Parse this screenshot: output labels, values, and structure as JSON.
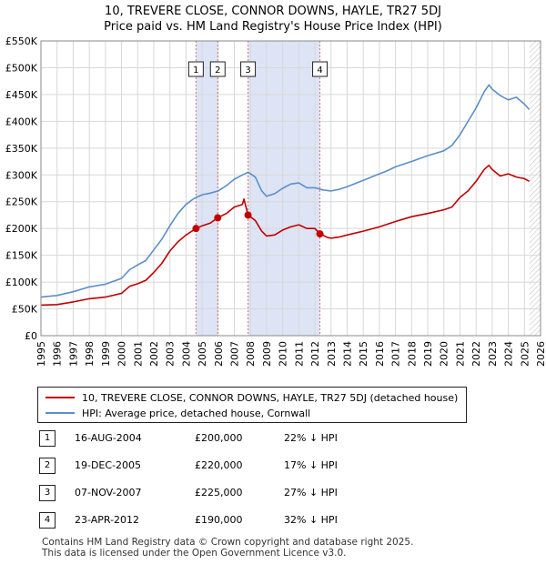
{
  "title_line1": "10, TREVERE CLOSE, CONNOR DOWNS, HAYLE, TR27 5DJ",
  "title_line2": "Price paid vs. HM Land Registry's House Price Index (HPI)",
  "colors": {
    "property": "#c00000",
    "hpi": "#5b8fc9",
    "shade": "#dde4f5",
    "event_line": "#e07070",
    "grid": "#d8d8d8"
  },
  "chart_data": {
    "type": "line",
    "title": "Price paid vs. HM Land Registry's House Price Index (HPI)",
    "xlabel": "",
    "ylabel": "",
    "xlim": [
      1995,
      2026
    ],
    "ylim": [
      0,
      550000
    ],
    "yticks": [
      0,
      50000,
      100000,
      150000,
      200000,
      250000,
      300000,
      350000,
      400000,
      450000,
      500000,
      550000
    ],
    "ytick_labels": [
      "£0",
      "£50K",
      "£100K",
      "£150K",
      "£200K",
      "£250K",
      "£300K",
      "£350K",
      "£400K",
      "£450K",
      "£500K",
      "£550K"
    ],
    "xticks": [
      1995,
      1996,
      1997,
      1998,
      1999,
      2000,
      2001,
      2002,
      2003,
      2004,
      2005,
      2006,
      2007,
      2008,
      2009,
      2010,
      2011,
      2012,
      2013,
      2014,
      2015,
      2016,
      2017,
      2018,
      2019,
      2020,
      2021,
      2022,
      2023,
      2024,
      2025,
      2026
    ],
    "xtick_labels": [
      "1995",
      "1996",
      "1997",
      "1998",
      "1999",
      "2000",
      "2001",
      "2002",
      "2003",
      "2004",
      "2005",
      "2006",
      "2007",
      "2008",
      "2009",
      "2010",
      "2011",
      "2012",
      "2013",
      "2014",
      "2015",
      "2016",
      "2017",
      "2018",
      "2019",
      "2020",
      "2021",
      "2022",
      "2023",
      "2024",
      "2025",
      "2026"
    ],
    "series": [
      {
        "name": "10, TREVERE CLOSE, CONNOR DOWNS, HAYLE, TR27 5DJ (detached house)",
        "color": "#c00000",
        "x": [
          1995,
          1996,
          1997,
          1998,
          1999,
          2000,
          2000.5,
          2001,
          2001.5,
          2002,
          2002.5,
          2003,
          2003.5,
          2004,
          2004.62,
          2005,
          2005.5,
          2005.97,
          2006.5,
          2007,
          2007.5,
          2007.6,
          2007.85,
          2008.3,
          2008.7,
          2009,
          2009.5,
          2010,
          2010.5,
          2011,
          2011.5,
          2012,
          2012.31,
          2012.8,
          2013,
          2013.5,
          2014,
          2015,
          2016,
          2017,
          2018,
          2019,
          2020,
          2020.5,
          2021,
          2021.5,
          2022,
          2022.5,
          2022.8,
          2023,
          2023.5,
          2024,
          2024.5,
          2025,
          2025.3
        ],
        "values": [
          57000,
          58000,
          63000,
          69000,
          72000,
          79000,
          92000,
          97000,
          103000,
          118000,
          135000,
          158000,
          175000,
          188000,
          200000,
          205000,
          210000,
          220000,
          228000,
          240000,
          245000,
          255000,
          225000,
          215000,
          195000,
          186000,
          188000,
          197000,
          203000,
          207000,
          200000,
          200000,
          190000,
          183000,
          182000,
          184000,
          188000,
          195000,
          203000,
          213000,
          222000,
          228000,
          235000,
          240000,
          258000,
          270000,
          288000,
          310000,
          318000,
          310000,
          298000,
          302000,
          296000,
          293000,
          288000
        ]
      },
      {
        "name": "HPI: Average price, detached house, Cornwall",
        "color": "#5b8fc9",
        "x": [
          1995,
          1996,
          1997,
          1998,
          1999,
          2000,
          2000.5,
          2001,
          2001.5,
          2002,
          2002.5,
          2003,
          2003.5,
          2004,
          2004.5,
          2005,
          2005.5,
          2006,
          2006.5,
          2007,
          2007.5,
          2007.85,
          2008.3,
          2008.7,
          2009,
          2009.5,
          2010,
          2010.5,
          2011,
          2011.5,
          2012,
          2012.5,
          2013,
          2013.5,
          2014,
          2015,
          2016,
          2016.5,
          2017,
          2018,
          2019,
          2020,
          2020.5,
          2021,
          2021.5,
          2022,
          2022.5,
          2022.8,
          2023,
          2023.5,
          2024,
          2024.5,
          2025,
          2025.3
        ],
        "values": [
          72000,
          75000,
          82000,
          91000,
          96000,
          107000,
          123000,
          132000,
          140000,
          160000,
          180000,
          205000,
          228000,
          245000,
          256000,
          263000,
          266000,
          270000,
          280000,
          292000,
          300000,
          305000,
          296000,
          270000,
          260000,
          265000,
          275000,
          283000,
          285000,
          276000,
          276000,
          272000,
          270000,
          273000,
          278000,
          290000,
          302000,
          308000,
          315000,
          325000,
          336000,
          345000,
          355000,
          375000,
          400000,
          425000,
          455000,
          468000,
          460000,
          448000,
          440000,
          445000,
          432000,
          422000
        ]
      }
    ],
    "events": [
      {
        "id": "1",
        "x": 2004.62,
        "value": 200000
      },
      {
        "id": "2",
        "x": 2005.97,
        "value": 220000
      },
      {
        "id": "3",
        "x": 2007.85,
        "value": 225000
      },
      {
        "id": "4",
        "x": 2012.31,
        "value": 190000
      }
    ],
    "shaded_ranges": [
      [
        2004.62,
        2005.97
      ],
      [
        2007.85,
        2012.31
      ]
    ],
    "hatched_after": 2025.3
  },
  "legend": {
    "property_label": "10, TREVERE CLOSE, CONNOR DOWNS, HAYLE, TR27 5DJ (detached house)",
    "hpi_label": "HPI: Average price, detached house, Cornwall"
  },
  "transactions": [
    {
      "id": "1",
      "date": "16-AUG-2004",
      "price": "£200,000",
      "hpi": "22% ↓ HPI"
    },
    {
      "id": "2",
      "date": "19-DEC-2005",
      "price": "£220,000",
      "hpi": "17% ↓ HPI"
    },
    {
      "id": "3",
      "date": "07-NOV-2007",
      "price": "£225,000",
      "hpi": "27% ↓ HPI"
    },
    {
      "id": "4",
      "date": "23-APR-2012",
      "price": "£190,000",
      "hpi": "32% ↓ HPI"
    }
  ],
  "footer": {
    "line1": "Contains HM Land Registry data © Crown copyright and database right 2025.",
    "line2": "This data is licensed under the Open Government Licence v3.0."
  }
}
